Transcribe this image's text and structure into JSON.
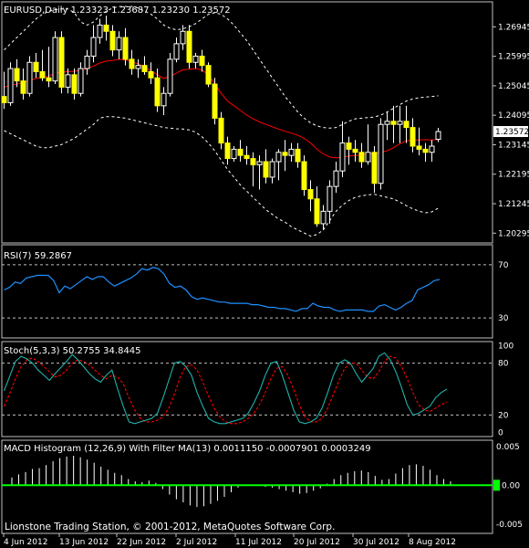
{
  "colors": {
    "background": "#000000",
    "frame": "#c0c0c0",
    "text": "#ffffff",
    "grid": "#c0c0c0",
    "bull_candle": "#000000",
    "bull_outline": "#ffffff",
    "bear_candle": "#ffff00",
    "wick": "#ffffff",
    "ma": "#ff0000",
    "bands": "#ffffff",
    "rsi": "#1e90ff",
    "stoch_main": "#20b2aa",
    "stoch_signal": "#ff0000",
    "macd_hist": "#ffffff",
    "macd_ma": "#00ff00",
    "price_tag_bg": "#ffffff",
    "price_tag_text": "#000000"
  },
  "chart_data": [
    {
      "type": "candlestick",
      "header": "EURUSD,Daily  1.23323 1.23687 1.23230 1.23572",
      "current_price": "1.23572",
      "ylim": [
        1.1998,
        1.2775
      ],
      "y_ticks": [
        {
          "v": 1.26945,
          "label": "1.26945"
        },
        {
          "v": 1.25995,
          "label": "1.25995"
        },
        {
          "v": 1.25045,
          "label": "1.25045"
        },
        {
          "v": 1.24095,
          "label": "1.24095"
        },
        {
          "v": 1.23145,
          "label": "1.23145"
        },
        {
          "v": 1.22195,
          "label": "1.22195"
        },
        {
          "v": 1.21245,
          "label": "1.21245"
        },
        {
          "v": 1.20295,
          "label": "1.20295"
        }
      ],
      "candles": [
        {
          "o": 1.247,
          "h": 1.255,
          "l": 1.243,
          "c": 1.245
        },
        {
          "o": 1.245,
          "h": 1.258,
          "l": 1.244,
          "c": 1.256
        },
        {
          "o": 1.256,
          "h": 1.259,
          "l": 1.25,
          "c": 1.252
        },
        {
          "o": 1.252,
          "h": 1.256,
          "l": 1.246,
          "c": 1.248
        },
        {
          "o": 1.248,
          "h": 1.26,
          "l": 1.247,
          "c": 1.258
        },
        {
          "o": 1.258,
          "h": 1.261,
          "l": 1.253,
          "c": 1.255
        },
        {
          "o": 1.255,
          "h": 1.262,
          "l": 1.252,
          "c": 1.253
        },
        {
          "o": 1.253,
          "h": 1.263,
          "l": 1.25,
          "c": 1.252
        },
        {
          "o": 1.252,
          "h": 1.268,
          "l": 1.251,
          "c": 1.266
        },
        {
          "o": 1.266,
          "h": 1.268,
          "l": 1.248,
          "c": 1.25
        },
        {
          "o": 1.25,
          "h": 1.256,
          "l": 1.248,
          "c": 1.254
        },
        {
          "o": 1.254,
          "h": 1.256,
          "l": 1.246,
          "c": 1.248
        },
        {
          "o": 1.248,
          "h": 1.258,
          "l": 1.247,
          "c": 1.256
        },
        {
          "o": 1.256,
          "h": 1.262,
          "l": 1.254,
          "c": 1.26
        },
        {
          "o": 1.26,
          "h": 1.27,
          "l": 1.258,
          "c": 1.266
        },
        {
          "o": 1.266,
          "h": 1.272,
          "l": 1.264,
          "c": 1.27
        },
        {
          "o": 1.27,
          "h": 1.273,
          "l": 1.265,
          "c": 1.268
        },
        {
          "o": 1.268,
          "h": 1.27,
          "l": 1.26,
          "c": 1.262
        },
        {
          "o": 1.262,
          "h": 1.268,
          "l": 1.259,
          "c": 1.266
        },
        {
          "o": 1.266,
          "h": 1.269,
          "l": 1.257,
          "c": 1.259
        },
        {
          "o": 1.259,
          "h": 1.262,
          "l": 1.254,
          "c": 1.256
        },
        {
          "o": 1.256,
          "h": 1.259,
          "l": 1.253,
          "c": 1.257
        },
        {
          "o": 1.257,
          "h": 1.26,
          "l": 1.254,
          "c": 1.255
        },
        {
          "o": 1.255,
          "h": 1.258,
          "l": 1.251,
          "c": 1.253
        },
        {
          "o": 1.253,
          "h": 1.256,
          "l": 1.242,
          "c": 1.244
        },
        {
          "o": 1.244,
          "h": 1.25,
          "l": 1.241,
          "c": 1.248
        },
        {
          "o": 1.248,
          "h": 1.261,
          "l": 1.247,
          "c": 1.259
        },
        {
          "o": 1.259,
          "h": 1.266,
          "l": 1.258,
          "c": 1.264
        },
        {
          "o": 1.264,
          "h": 1.27,
          "l": 1.262,
          "c": 1.268
        },
        {
          "o": 1.268,
          "h": 1.27,
          "l": 1.256,
          "c": 1.258
        },
        {
          "o": 1.258,
          "h": 1.261,
          "l": 1.256,
          "c": 1.26
        },
        {
          "o": 1.26,
          "h": 1.262,
          "l": 1.255,
          "c": 1.257
        },
        {
          "o": 1.257,
          "h": 1.258,
          "l": 1.25,
          "c": 1.251
        },
        {
          "o": 1.251,
          "h": 1.253,
          "l": 1.238,
          "c": 1.24
        },
        {
          "o": 1.24,
          "h": 1.242,
          "l": 1.23,
          "c": 1.232
        },
        {
          "o": 1.232,
          "h": 1.234,
          "l": 1.225,
          "c": 1.227
        },
        {
          "o": 1.227,
          "h": 1.231,
          "l": 1.226,
          "c": 1.23
        },
        {
          "o": 1.23,
          "h": 1.233,
          "l": 1.226,
          "c": 1.228
        },
        {
          "o": 1.228,
          "h": 1.231,
          "l": 1.225,
          "c": 1.227
        },
        {
          "o": 1.227,
          "h": 1.229,
          "l": 1.218,
          "c": 1.225
        },
        {
          "o": 1.225,
          "h": 1.228,
          "l": 1.217,
          "c": 1.226
        },
        {
          "o": 1.226,
          "h": 1.23,
          "l": 1.219,
          "c": 1.221
        },
        {
          "o": 1.221,
          "h": 1.227,
          "l": 1.219,
          "c": 1.226
        },
        {
          "o": 1.226,
          "h": 1.23,
          "l": 1.22,
          "c": 1.229
        },
        {
          "o": 1.229,
          "h": 1.233,
          "l": 1.223,
          "c": 1.228
        },
        {
          "o": 1.228,
          "h": 1.232,
          "l": 1.226,
          "c": 1.23
        },
        {
          "o": 1.23,
          "h": 1.232,
          "l": 1.224,
          "c": 1.226
        },
        {
          "o": 1.226,
          "h": 1.228,
          "l": 1.215,
          "c": 1.217
        },
        {
          "o": 1.217,
          "h": 1.22,
          "l": 1.21,
          "c": 1.214
        },
        {
          "o": 1.214,
          "h": 1.218,
          "l": 1.205,
          "c": 1.206
        },
        {
          "o": 1.206,
          "h": 1.212,
          "l": 1.204,
          "c": 1.21
        },
        {
          "o": 1.21,
          "h": 1.22,
          "l": 1.206,
          "c": 1.218
        },
        {
          "o": 1.218,
          "h": 1.226,
          "l": 1.216,
          "c": 1.223
        },
        {
          "o": 1.223,
          "h": 1.239,
          "l": 1.221,
          "c": 1.232
        },
        {
          "o": 1.232,
          "h": 1.234,
          "l": 1.225,
          "c": 1.23
        },
        {
          "o": 1.23,
          "h": 1.233,
          "l": 1.226,
          "c": 1.229
        },
        {
          "o": 1.229,
          "h": 1.232,
          "l": 1.224,
          "c": 1.226
        },
        {
          "o": 1.226,
          "h": 1.238,
          "l": 1.225,
          "c": 1.229
        },
        {
          "o": 1.229,
          "h": 1.231,
          "l": 1.216,
          "c": 1.219
        },
        {
          "o": 1.219,
          "h": 1.24,
          "l": 1.217,
          "c": 1.238
        },
        {
          "o": 1.238,
          "h": 1.242,
          "l": 1.233,
          "c": 1.239
        },
        {
          "o": 1.239,
          "h": 1.244,
          "l": 1.232,
          "c": 1.238
        },
        {
          "o": 1.238,
          "h": 1.244,
          "l": 1.232,
          "c": 1.239
        },
        {
          "o": 1.239,
          "h": 1.244,
          "l": 1.232,
          "c": 1.237
        },
        {
          "o": 1.237,
          "h": 1.24,
          "l": 1.229,
          "c": 1.231
        },
        {
          "o": 1.231,
          "h": 1.237,
          "l": 1.228,
          "c": 1.23
        },
        {
          "o": 1.23,
          "h": 1.232,
          "l": 1.226,
          "c": 1.229
        },
        {
          "o": 1.229,
          "h": 1.233,
          "l": 1.226,
          "c": 1.231
        },
        {
          "o": 1.2332,
          "h": 1.2369,
          "l": 1.2323,
          "c": 1.2357
        }
      ],
      "ma": [
        1.25,
        1.2505,
        1.251,
        1.2515,
        1.2522,
        1.2528,
        1.2532,
        1.2535,
        1.2545,
        1.2548,
        1.255,
        1.2551,
        1.2555,
        1.256,
        1.2568,
        1.2578,
        1.2584,
        1.2586,
        1.259,
        1.2588,
        1.2583,
        1.2575,
        1.2565,
        1.2553,
        1.254,
        1.2528,
        1.2535,
        1.2545,
        1.2556,
        1.2558,
        1.256,
        1.2555,
        1.254,
        1.251,
        1.248,
        1.2455,
        1.244,
        1.2425,
        1.241,
        1.2398,
        1.2388,
        1.238,
        1.2372,
        1.2365,
        1.2358,
        1.2352,
        1.2345,
        1.2335,
        1.232,
        1.23,
        1.2285,
        1.2275,
        1.2272,
        1.2275,
        1.2278,
        1.228,
        1.2282,
        1.2285,
        1.2285,
        1.229,
        1.2295,
        1.2305,
        1.2318,
        1.2327,
        1.233,
        1.233,
        1.2331,
        1.233,
        1.2332
      ],
      "upper_band": [
        1.262,
        1.264,
        1.266,
        1.268,
        1.27,
        1.272,
        1.2735,
        1.2745,
        1.275,
        1.2752,
        1.2752,
        1.274,
        1.271,
        1.27,
        1.271,
        1.273,
        1.2745,
        1.2755,
        1.276,
        1.276,
        1.276,
        1.2755,
        1.2745,
        1.2735,
        1.272,
        1.27,
        1.269,
        1.2685,
        1.2688,
        1.2695,
        1.2705,
        1.272,
        1.2735,
        1.274,
        1.2735,
        1.272,
        1.27,
        1.2675,
        1.265,
        1.262,
        1.259,
        1.256,
        1.253,
        1.25,
        1.247,
        1.2445,
        1.242,
        1.24,
        1.2385,
        1.2375,
        1.237,
        1.2368,
        1.237,
        1.238,
        1.239,
        1.2398,
        1.24,
        1.2402,
        1.2404,
        1.241,
        1.242,
        1.2432,
        1.2444,
        1.2455,
        1.2462,
        1.2466,
        1.2468,
        1.247,
        1.2472
      ],
      "lower_band": [
        1.236,
        1.235,
        1.234,
        1.233,
        1.232,
        1.231,
        1.2305,
        1.2305,
        1.231,
        1.2315,
        1.2325,
        1.2335,
        1.235,
        1.2365,
        1.238,
        1.24,
        1.2405,
        1.2405,
        1.2403,
        1.24,
        1.2395,
        1.239,
        1.2385,
        1.238,
        1.2375,
        1.237,
        1.2368,
        1.2366,
        1.2365,
        1.2362,
        1.2355,
        1.234,
        1.232,
        1.2295,
        1.2265,
        1.2235,
        1.221,
        1.2185,
        1.2165,
        1.2145,
        1.2125,
        1.2105,
        1.209,
        1.2075,
        1.2065,
        1.205,
        1.204,
        1.203,
        1.202,
        1.2025,
        1.204,
        1.207,
        1.21,
        1.212,
        1.2135,
        1.2145,
        1.215,
        1.2153,
        1.2155,
        1.215,
        1.2145,
        1.214,
        1.213,
        1.2118,
        1.2108,
        1.21,
        1.2095,
        1.2098,
        1.211
      ]
    },
    {
      "type": "line",
      "header": "RSI(7) 59.2867",
      "ylim": [
        15,
        85
      ],
      "levels": [
        70,
        30
      ],
      "y_ticks": [
        {
          "v": 70,
          "label": "70"
        },
        {
          "v": 30,
          "label": "30"
        }
      ],
      "series": [
        {
          "values": [
            51,
            53,
            57,
            56,
            60,
            61,
            62,
            62,
            62,
            58,
            49,
            54,
            52,
            55,
            58,
            61,
            59,
            61,
            61,
            57,
            54,
            56,
            58,
            60,
            63,
            67,
            66,
            68,
            67,
            63,
            56,
            53,
            54,
            51,
            46,
            44,
            45,
            44,
            43,
            42,
            42,
            41,
            41,
            41,
            41,
            40,
            40,
            39,
            38,
            38,
            37,
            37,
            36,
            35,
            37,
            37,
            41,
            39,
            38,
            38,
            36,
            35,
            36,
            36,
            36,
            36,
            35,
            35,
            39,
            40,
            38,
            36,
            38,
            41,
            43,
            51,
            53,
            55,
            58,
            59
          ]
        }
      ]
    },
    {
      "type": "line",
      "header": "Stoch(5,3,3) 50.2755 34.8445",
      "ylim": [
        -5,
        105
      ],
      "levels": [
        80,
        20
      ],
      "y_ticks": [
        {
          "v": 100,
          "label": "100"
        },
        {
          "v": 80,
          "label": "80"
        },
        {
          "v": 20,
          "label": "20"
        },
        {
          "v": 0,
          "label": "0"
        }
      ],
      "series": [
        {
          "values": [
            48,
            65,
            82,
            88,
            85,
            80,
            72,
            66,
            60,
            68,
            75,
            82,
            90,
            84,
            76,
            68,
            62,
            58,
            66,
            72,
            50,
            30,
            12,
            10,
            12,
            14,
            16,
            22,
            40,
            60,
            80,
            82,
            76,
            66,
            46,
            30,
            16,
            12,
            10,
            10,
            12,
            14,
            16,
            22,
            34,
            48,
            66,
            80,
            82,
            66,
            46,
            26,
            12,
            10,
            12,
            16,
            28,
            46,
            66,
            80,
            84,
            80,
            68,
            58,
            66,
            74,
            88,
            92,
            84,
            70,
            52,
            32,
            20,
            22,
            26,
            30,
            40,
            46,
            50
          ]
        },
        {
          "values": [
            30,
            45,
            62,
            76,
            84,
            86,
            82,
            76,
            70,
            64,
            66,
            72,
            80,
            84,
            82,
            78,
            72,
            66,
            62,
            66,
            64,
            56,
            40,
            26,
            16,
            12,
            12,
            14,
            18,
            28,
            44,
            64,
            76,
            78,
            72,
            58,
            42,
            28,
            18,
            12,
            10,
            10,
            12,
            16,
            22,
            32,
            46,
            62,
            74,
            76,
            66,
            50,
            32,
            18,
            12,
            12,
            16,
            28,
            44,
            60,
            74,
            80,
            80,
            72,
            64,
            62,
            70,
            82,
            88,
            86,
            76,
            62,
            46,
            32,
            26,
            24,
            28,
            32,
            35
          ]
        }
      ]
    },
    {
      "type": "bar",
      "header": "MACD Histogram (12,26,9) With Filter MA(13) 0.0011150 -0.0007901 0.0003249",
      "ylim": [
        -0.0062,
        0.0058
      ],
      "y_ticks": [
        {
          "v": 0.005,
          "label": "0.005"
        },
        {
          "v": -0.005,
          "label": "-0.005"
        }
      ],
      "zero_label": "0.00",
      "values": [
        0.001,
        0.0014,
        0.0017,
        0.0021,
        0.0022,
        0.0026,
        0.0031,
        0.0035,
        0.0037,
        0.0038,
        0.0036,
        0.0033,
        0.0029,
        0.0024,
        0.002,
        0.0016,
        0.0013,
        0.0008,
        0.0005,
        0.0004,
        0.0006,
        0.0003,
        -0.0005,
        -0.0012,
        -0.0018,
        -0.0022,
        -0.0026,
        -0.0028,
        -0.0027,
        -0.0024,
        -0.002,
        -0.0015,
        -0.0009,
        -0.0003,
        -0.0001,
        0.0,
        -0.0001,
        -0.0002,
        -0.0003,
        -0.0005,
        -0.0007,
        -0.0009,
        -0.0011,
        -0.001,
        -0.0007,
        -0.0004,
        0.0002,
        0.0008,
        0.0013,
        0.0016,
        0.0018,
        0.0019,
        0.0017,
        0.0012,
        0.0007,
        0.0008,
        0.0015,
        0.0022,
        0.0026,
        0.0027,
        0.0025,
        0.002,
        0.0013,
        0.0008,
        0.0005
      ],
      "ma_value": 0.0
    }
  ],
  "x_axis": {
    "labels": [
      "4 Jun 2012",
      "13 Jun 2012",
      "22 Jun 2012",
      "2 Jul 2012",
      "11 Jul 2012",
      "20 Jul 2012",
      "30 Jul 2012",
      "8 Aug 2012"
    ]
  },
  "footer": "Lionstone Trading Station, © 2001-2012, MetaQuotes Software Corp."
}
